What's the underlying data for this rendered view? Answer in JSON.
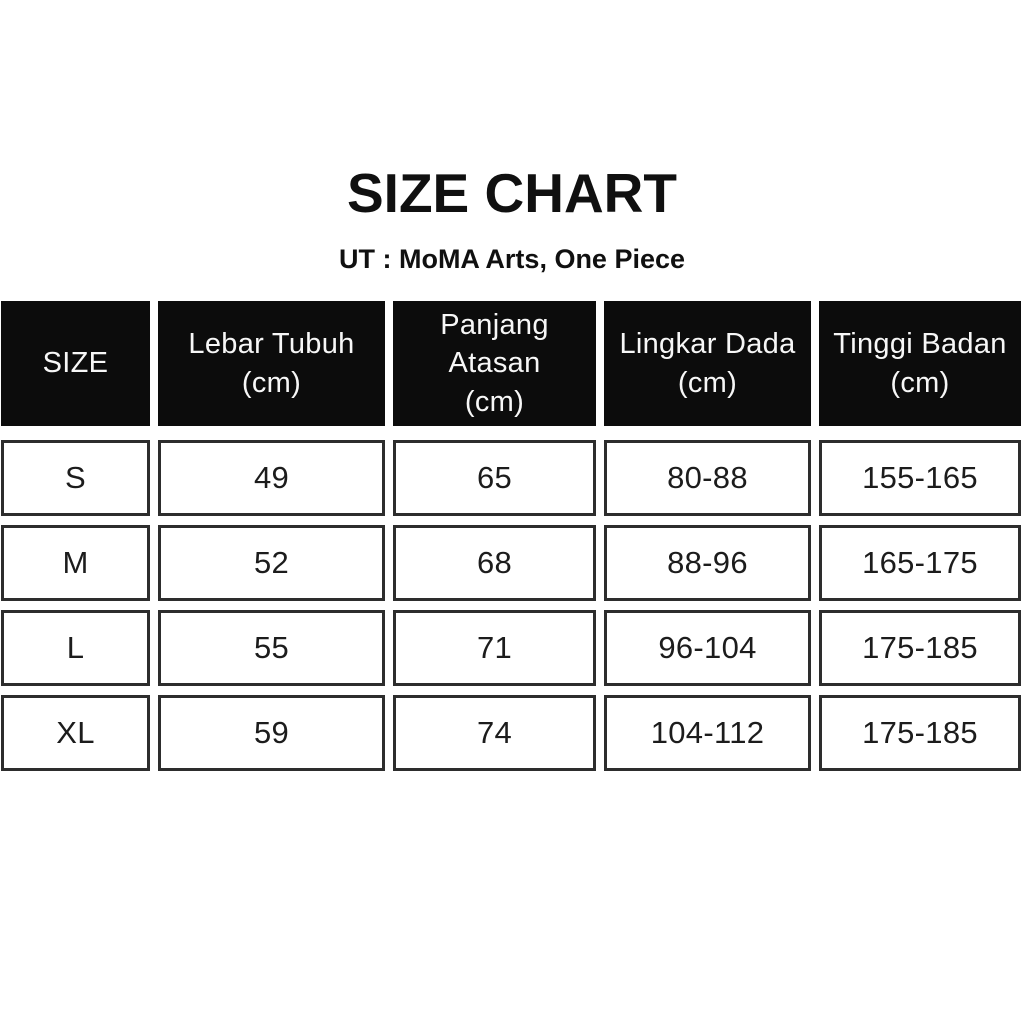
{
  "page": {
    "background": "#ffffff"
  },
  "header": {
    "title": "SIZE CHART",
    "subtitle": "UT : MoMA Arts, One Piece"
  },
  "colors": {
    "header_cell_background": "#0c0c0c",
    "header_cell_text": "#f7f7f7",
    "data_cell_border": "#2d2d2d",
    "data_cell_text": "#1c1c1c"
  },
  "table": {
    "columns": [
      {
        "label": "SIZE"
      },
      {
        "label": "Lebar Tubuh\n(cm)"
      },
      {
        "label": "Panjang\nAtasan\n(cm)"
      },
      {
        "label": "Lingkar Dada\n(cm)"
      },
      {
        "label": "Tinggi Badan\n(cm)"
      }
    ],
    "rows": [
      [
        "S",
        "49",
        "65",
        "80-88",
        "155-165"
      ],
      [
        "M",
        "52",
        "68",
        "88-96",
        "165-175"
      ],
      [
        "L",
        "55",
        "71",
        "96-104",
        "175-185"
      ],
      [
        "XL",
        "59",
        "74",
        "104-112",
        "175-185"
      ]
    ]
  },
  "chart_data": {
    "type": "table",
    "title": "SIZE CHART",
    "subtitle": "UT : MoMA Arts, One Piece",
    "columns": [
      "SIZE",
      "Lebar Tubuh (cm)",
      "Panjang Atasan (cm)",
      "Lingkar Dada (cm)",
      "Tinggi Badan (cm)"
    ],
    "rows": [
      [
        "S",
        "49",
        "65",
        "80-88",
        "155-165"
      ],
      [
        "M",
        "52",
        "68",
        "88-96",
        "165-175"
      ],
      [
        "L",
        "55",
        "71",
        "96-104",
        "175-185"
      ],
      [
        "XL",
        "59",
        "74",
        "104-112",
        "175-185"
      ]
    ]
  }
}
